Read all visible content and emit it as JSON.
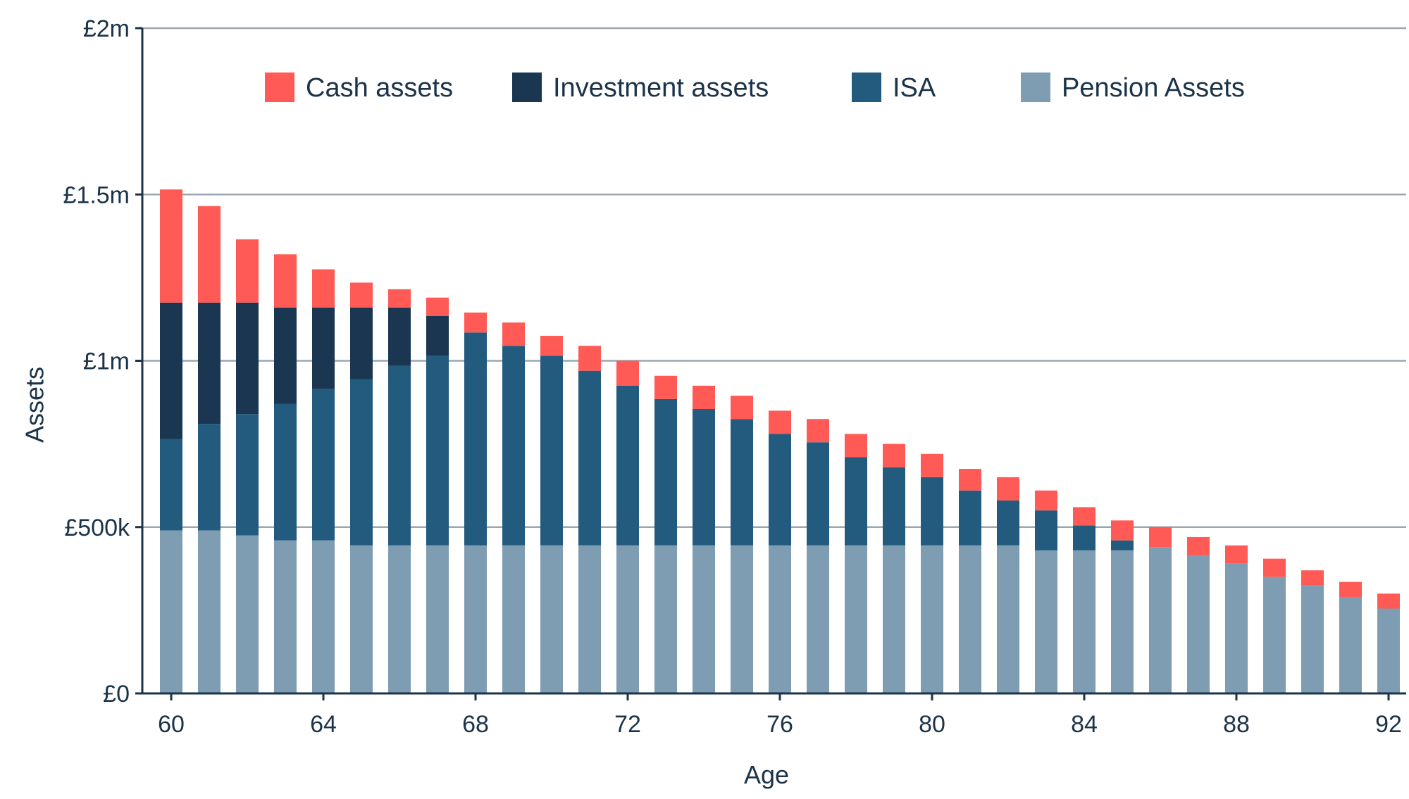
{
  "chart_data": {
    "type": "bar",
    "stacked": true,
    "xlabel": "Age",
    "ylabel": "Assets",
    "ylim": [
      0,
      2000000
    ],
    "y_ticks": [
      {
        "value": 0,
        "label": "£0"
      },
      {
        "value": 500000,
        "label": "£500k"
      },
      {
        "value": 1000000,
        "label": "£1m"
      },
      {
        "value": 1500000,
        "label": "£1.5m"
      },
      {
        "value": 2000000,
        "label": "£2m"
      }
    ],
    "x_tick_labels": [
      "60",
      "64",
      "68",
      "72",
      "76",
      "80",
      "84",
      "88",
      "92"
    ],
    "grid": true,
    "legend_position": "top",
    "categories": [
      60,
      61,
      62,
      63,
      64,
      65,
      66,
      67,
      68,
      69,
      70,
      71,
      72,
      73,
      74,
      75,
      76,
      77,
      78,
      79,
      80,
      81,
      82,
      83,
      84,
      85,
      86,
      87,
      88,
      89,
      90,
      91,
      92
    ],
    "series": [
      {
        "name": "Pension Assets",
        "color": "#7f9db2",
        "values": [
          490000,
          490000,
          475000,
          460000,
          460000,
          445000,
          445000,
          445000,
          445000,
          445000,
          445000,
          445000,
          445000,
          445000,
          445000,
          445000,
          445000,
          445000,
          445000,
          445000,
          445000,
          445000,
          445000,
          430000,
          430000,
          430000,
          440000,
          415000,
          390000,
          350000,
          325000,
          290000,
          255000
        ]
      },
      {
        "name": "ISA",
        "color": "#235b7f",
        "values": [
          275000,
          320000,
          365000,
          410000,
          455000,
          500000,
          540000,
          570000,
          640000,
          600000,
          570000,
          525000,
          480000,
          440000,
          410000,
          380000,
          335000,
          310000,
          265000,
          235000,
          205000,
          165000,
          135000,
          120000,
          75000,
          30000,
          0,
          0,
          0,
          0,
          0,
          0,
          0
        ]
      },
      {
        "name": "Investment assets",
        "color": "#1b3651",
        "values": [
          410000,
          365000,
          335000,
          290000,
          245000,
          215000,
          175000,
          120000,
          0,
          0,
          0,
          0,
          0,
          0,
          0,
          0,
          0,
          0,
          0,
          0,
          0,
          0,
          0,
          0,
          0,
          0,
          0,
          0,
          0,
          0,
          0,
          0,
          0
        ]
      },
      {
        "name": "Cash assets",
        "color": "#ff5a55",
        "values": [
          340000,
          290000,
          190000,
          160000,
          115000,
          75000,
          55000,
          55000,
          60000,
          70000,
          60000,
          75000,
          75000,
          70000,
          70000,
          70000,
          70000,
          70000,
          70000,
          70000,
          70000,
          65000,
          70000,
          60000,
          55000,
          60000,
          60000,
          55000,
          55000,
          55000,
          45000,
          45000,
          45000
        ]
      }
    ],
    "legend_order": [
      "Cash assets",
      "Investment assets",
      "ISA",
      "Pension Assets"
    ]
  }
}
